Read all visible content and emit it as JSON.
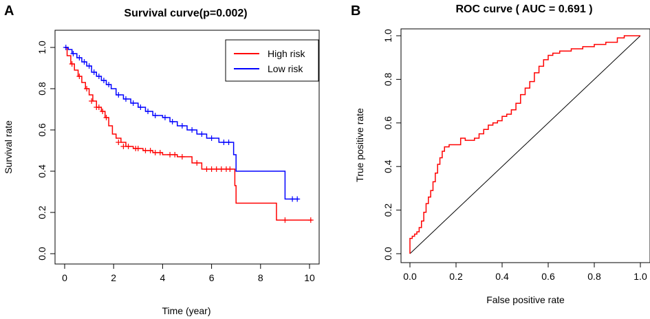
{
  "panels": {
    "a": {
      "letter": "A"
    },
    "b": {
      "letter": "B"
    }
  },
  "chart_data": [
    {
      "type": "line",
      "subtype": "kaplan-meier",
      "title": "Survival curve(p=0.002)",
      "xlabel": "Time (year)",
      "ylabel": "Survival rate",
      "xlim": [
        0,
        10
      ],
      "ylim": [
        0,
        1
      ],
      "x_ticks": [
        0,
        2,
        4,
        6,
        8,
        10
      ],
      "y_ticks": [
        0.0,
        0.2,
        0.4,
        0.6,
        0.8,
        1.0
      ],
      "x_tick_labels": [
        "0",
        "2",
        "4",
        "6",
        "8",
        "10"
      ],
      "y_tick_labels": [
        "0.0",
        "0.2",
        "0.4",
        "0.6",
        "0.8",
        "1.0"
      ],
      "legend": {
        "position": "top-right",
        "entries": [
          {
            "label": "High risk",
            "color": "#ff0000"
          },
          {
            "label": "Low risk",
            "color": "#0000ff"
          }
        ]
      },
      "series": [
        {
          "name": "High risk",
          "color": "#ff0000",
          "steps": [
            [
              0,
              1.0
            ],
            [
              0.1,
              0.96
            ],
            [
              0.25,
              0.92
            ],
            [
              0.4,
              0.89
            ],
            [
              0.55,
              0.86
            ],
            [
              0.7,
              0.83
            ],
            [
              0.85,
              0.8
            ],
            [
              1.0,
              0.77
            ],
            [
              1.15,
              0.74
            ],
            [
              1.3,
              0.71
            ],
            [
              1.5,
              0.69
            ],
            [
              1.65,
              0.66
            ],
            [
              1.8,
              0.62
            ],
            [
              1.95,
              0.58
            ],
            [
              2.1,
              0.56
            ],
            [
              2.3,
              0.54
            ],
            [
              2.5,
              0.52
            ],
            [
              2.8,
              0.51
            ],
            [
              3.2,
              0.5
            ],
            [
              3.6,
              0.49
            ],
            [
              4.0,
              0.48
            ],
            [
              4.6,
              0.47
            ],
            [
              5.2,
              0.44
            ],
            [
              5.6,
              0.41
            ],
            [
              6.8,
              0.41
            ],
            [
              6.95,
              0.33
            ],
            [
              7.0,
              0.245
            ],
            [
              8.6,
              0.245
            ],
            [
              8.65,
              0.163
            ],
            [
              10.1,
              0.163
            ]
          ],
          "censored": [
            [
              0.3,
              0.92
            ],
            [
              0.6,
              0.86
            ],
            [
              0.9,
              0.8
            ],
            [
              1.1,
              0.74
            ],
            [
              1.3,
              0.71
            ],
            [
              1.4,
              0.71
            ],
            [
              1.55,
              0.69
            ],
            [
              1.7,
              0.66
            ],
            [
              2.2,
              0.54
            ],
            [
              2.4,
              0.52
            ],
            [
              2.6,
              0.52
            ],
            [
              2.9,
              0.51
            ],
            [
              3.0,
              0.51
            ],
            [
              3.3,
              0.5
            ],
            [
              3.5,
              0.5
            ],
            [
              3.7,
              0.49
            ],
            [
              3.9,
              0.49
            ],
            [
              4.3,
              0.48
            ],
            [
              4.5,
              0.48
            ],
            [
              4.8,
              0.47
            ],
            [
              5.4,
              0.44
            ],
            [
              5.8,
              0.41
            ],
            [
              6.0,
              0.41
            ],
            [
              6.2,
              0.41
            ],
            [
              6.4,
              0.41
            ],
            [
              6.6,
              0.41
            ],
            [
              6.75,
              0.41
            ],
            [
              9.0,
              0.163
            ],
            [
              10.05,
              0.163
            ]
          ]
        },
        {
          "name": "Low risk",
          "color": "#0000ff",
          "steps": [
            [
              0,
              1.0
            ],
            [
              0.15,
              0.99
            ],
            [
              0.3,
              0.97
            ],
            [
              0.5,
              0.95
            ],
            [
              0.7,
              0.93
            ],
            [
              0.9,
              0.91
            ],
            [
              1.1,
              0.88
            ],
            [
              1.3,
              0.86
            ],
            [
              1.5,
              0.84
            ],
            [
              1.7,
              0.82
            ],
            [
              1.9,
              0.8
            ],
            [
              2.1,
              0.77
            ],
            [
              2.4,
              0.75
            ],
            [
              2.7,
              0.73
            ],
            [
              3.0,
              0.71
            ],
            [
              3.3,
              0.69
            ],
            [
              3.6,
              0.67
            ],
            [
              4.0,
              0.66
            ],
            [
              4.3,
              0.64
            ],
            [
              4.6,
              0.62
            ],
            [
              5.0,
              0.6
            ],
            [
              5.4,
              0.58
            ],
            [
              5.8,
              0.56
            ],
            [
              6.3,
              0.54
            ],
            [
              6.9,
              0.48
            ],
            [
              7.0,
              0.4
            ],
            [
              8.9,
              0.4
            ],
            [
              9.0,
              0.265
            ],
            [
              9.55,
              0.265
            ]
          ],
          "censored": [
            [
              0.05,
              1.0
            ],
            [
              0.35,
              0.97
            ],
            [
              0.6,
              0.95
            ],
            [
              0.8,
              0.93
            ],
            [
              1.0,
              0.91
            ],
            [
              1.2,
              0.88
            ],
            [
              1.4,
              0.86
            ],
            [
              1.6,
              0.84
            ],
            [
              1.8,
              0.82
            ],
            [
              2.2,
              0.77
            ],
            [
              2.5,
              0.75
            ],
            [
              2.8,
              0.73
            ],
            [
              3.1,
              0.71
            ],
            [
              3.4,
              0.69
            ],
            [
              3.7,
              0.67
            ],
            [
              4.1,
              0.66
            ],
            [
              4.4,
              0.64
            ],
            [
              4.8,
              0.62
            ],
            [
              5.2,
              0.6
            ],
            [
              5.6,
              0.58
            ],
            [
              6.0,
              0.56
            ],
            [
              6.5,
              0.54
            ],
            [
              6.7,
              0.54
            ],
            [
              9.3,
              0.265
            ],
            [
              9.5,
              0.265
            ]
          ]
        }
      ]
    },
    {
      "type": "line",
      "subtype": "roc",
      "title": "ROC curve ( AUC =  0.691 )",
      "xlabel": "False positive rate",
      "ylabel": "True positive rate",
      "xlim": [
        0,
        1
      ],
      "ylim": [
        0,
        1
      ],
      "x_ticks": [
        0,
        0.2,
        0.4,
        0.6,
        0.8,
        1.0
      ],
      "y_ticks": [
        0,
        0.2,
        0.4,
        0.6,
        0.8,
        1.0
      ],
      "x_tick_labels": [
        "0.0",
        "0.2",
        "0.4",
        "0.6",
        "0.8",
        "1.0"
      ],
      "y_tick_labels": [
        "0.0",
        "0.2",
        "0.4",
        "0.6",
        "0.8",
        "1.0"
      ],
      "diagonal": true,
      "series": [
        {
          "name": "ROC",
          "color": "#ff0000",
          "points": [
            [
              0,
              0
            ],
            [
              0,
              0.05
            ],
            [
              0.01,
              0.07
            ],
            [
              0.02,
              0.08
            ],
            [
              0.03,
              0.09
            ],
            [
              0.04,
              0.1
            ],
            [
              0.05,
              0.12
            ],
            [
              0.06,
              0.15
            ],
            [
              0.07,
              0.19
            ],
            [
              0.08,
              0.23
            ],
            [
              0.09,
              0.26
            ],
            [
              0.1,
              0.29
            ],
            [
              0.11,
              0.33
            ],
            [
              0.12,
              0.37
            ],
            [
              0.13,
              0.41
            ],
            [
              0.14,
              0.44
            ],
            [
              0.15,
              0.47
            ],
            [
              0.17,
              0.49
            ],
            [
              0.2,
              0.5
            ],
            [
              0.22,
              0.5
            ],
            [
              0.24,
              0.53
            ],
            [
              0.28,
              0.52
            ],
            [
              0.3,
              0.53
            ],
            [
              0.32,
              0.55
            ],
            [
              0.34,
              0.57
            ],
            [
              0.36,
              0.59
            ],
            [
              0.38,
              0.6
            ],
            [
              0.4,
              0.61
            ],
            [
              0.42,
              0.63
            ],
            [
              0.44,
              0.64
            ],
            [
              0.46,
              0.66
            ],
            [
              0.48,
              0.69
            ],
            [
              0.5,
              0.73
            ],
            [
              0.52,
              0.76
            ],
            [
              0.54,
              0.79
            ],
            [
              0.56,
              0.83
            ],
            [
              0.58,
              0.86
            ],
            [
              0.6,
              0.89
            ],
            [
              0.62,
              0.91
            ],
            [
              0.65,
              0.92
            ],
            [
              0.7,
              0.93
            ],
            [
              0.75,
              0.94
            ],
            [
              0.8,
              0.95
            ],
            [
              0.85,
              0.96
            ],
            [
              0.9,
              0.97
            ],
            [
              0.93,
              0.99
            ],
            [
              0.95,
              1.0
            ],
            [
              1.0,
              1.0
            ]
          ]
        }
      ]
    }
  ]
}
